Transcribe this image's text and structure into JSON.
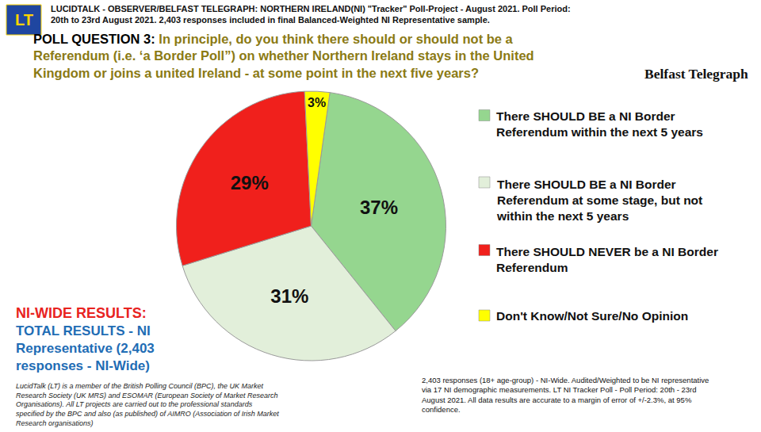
{
  "chart_data": {
    "type": "pie",
    "title": "POLL QUESTION 3:",
    "subtitle": "In principle, do you think there should or should not be a Referendum (i.e. ‘a Border Poll”) on whether Northern Ireland stays in the United Kingdom or joins a united Ireland - at some point in the next five years?",
    "categories": [
      "There SHOULD BE a NI Border Referendum within the next 5 years",
      "There SHOULD BE a NI Border Referendum at some stage, but not within the next 5 years",
      "There SHOULD NEVER be a NI Border Referendum",
      "Don't Know/Not Sure/No Opinion"
    ],
    "values": [
      37,
      31,
      29,
      3
    ],
    "value_labels": [
      "37%",
      "31%",
      "29%",
      "3%"
    ],
    "colors": [
      "#95d68f",
      "#e2efda",
      "#f0201c",
      "#ffff00"
    ],
    "data_labels": true,
    "annotations": [
      "LUCIDTALK - OBSERVER/BELFAST TELEGRAPH: NORTHERN IRELAND(NI) \"Tracker\" Poll-Project - August 2021. Poll Period: 20th to 23rd August 2021. 2,403 responses included in final Balanced-Weighted NI Representative sample.",
      "LT",
      "Belfast Telegraph",
      "NI-WIDE RESULTS:",
      "TOTAL RESULTS - NI Representative (2,403 responses - NI-Wide)",
      "LucidTalk (LT) is a member of the British Polling Council (BPC), the UK Market Research Society (UK MRS) and ESOMAR (European Society of Market Research Organisations). All LT projects are carried out to the professional standards specified by the BPC and also (as published) of AIMRO (Association of Irish Market Research organisations)",
      "2,403 responses (18+ age-group) - NI-Wide. Audited/Weighted to be NI representative via 17 NI demographic measurements. LT NI Tracker Poll - Poll Period: 20th - 23rd August 2021. All data results are accurate to a margin of error of +/-2.3%, at 95% confidence."
    ]
  }
}
